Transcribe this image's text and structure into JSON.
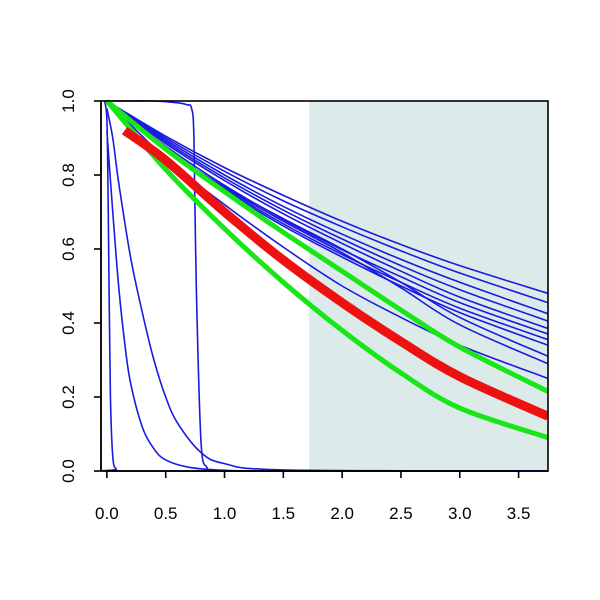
{
  "chart_data": {
    "type": "line",
    "title": "",
    "xlabel": "",
    "ylabel": "",
    "xlim": [
      -0.05,
      3.75
    ],
    "ylim": [
      0,
      1
    ],
    "x_ticks": [
      0.0,
      0.5,
      1.0,
      1.5,
      2.0,
      2.5,
      3.0,
      3.5
    ],
    "x_tick_labels": [
      "0.0",
      "0.5",
      "1.0",
      "1.5",
      "2.0",
      "2.5",
      "3.0",
      "3.5"
    ],
    "y_ticks": [
      0.0,
      0.2,
      0.4,
      0.6,
      0.8,
      1.0
    ],
    "y_tick_labels": [
      "0.0",
      "0.2",
      "0.4",
      "0.6",
      "0.8",
      "1.0"
    ],
    "grid": false,
    "legend": "none",
    "shaded_region": {
      "x_range": [
        1.72,
        3.75
      ],
      "color": "#dcebea"
    },
    "colors": {
      "blue": "#1a1ae0",
      "green": "#19e619",
      "red": "#ee1111",
      "frame": "#000000"
    },
    "series": [
      {
        "color": "blue",
        "width": 1.6,
        "x": [
          0,
          0.5,
          1,
          1.5,
          2,
          2.5,
          3,
          3.75
        ],
        "y": [
          1,
          0.905,
          0.82,
          0.745,
          0.675,
          0.612,
          0.555,
          0.48
        ]
      },
      {
        "color": "blue",
        "width": 1.6,
        "x": [
          0,
          0.5,
          1,
          1.5,
          2,
          2.5,
          3,
          3.75
        ],
        "y": [
          1,
          0.9,
          0.81,
          0.73,
          0.66,
          0.595,
          0.535,
          0.455
        ]
      },
      {
        "color": "blue",
        "width": 1.6,
        "x": [
          0,
          0.5,
          1,
          1.5,
          2,
          2.5,
          3,
          3.75
        ],
        "y": [
          1,
          0.895,
          0.8,
          0.715,
          0.64,
          0.572,
          0.51,
          0.425
        ]
      },
      {
        "color": "blue",
        "width": 1.6,
        "x": [
          0,
          0.5,
          1,
          1.5,
          2,
          2.5,
          3,
          3.75
        ],
        "y": [
          1,
          0.89,
          0.792,
          0.705,
          0.627,
          0.555,
          0.49,
          0.405
        ]
      },
      {
        "color": "blue",
        "width": 1.6,
        "x": [
          0,
          0.5,
          1,
          1.5,
          2,
          2.5,
          3,
          3.75
        ],
        "y": [
          1,
          0.885,
          0.785,
          0.695,
          0.615,
          0.54,
          0.47,
          0.385
        ]
      },
      {
        "color": "blue",
        "width": 1.6,
        "x": [
          0,
          0.5,
          1,
          1.5,
          2,
          2.5,
          3,
          3.75
        ],
        "y": [
          1,
          0.878,
          0.772,
          0.68,
          0.598,
          0.525,
          0.455,
          0.37
        ]
      },
      {
        "color": "blue",
        "width": 1.6,
        "x": [
          0,
          0.5,
          1,
          1.5,
          2,
          2.5,
          3,
          3.75
        ],
        "y": [
          1,
          0.872,
          0.762,
          0.668,
          0.585,
          0.51,
          0.44,
          0.355
        ]
      },
      {
        "color": "blue",
        "width": 1.6,
        "x": [
          0,
          0.5,
          1,
          1.5,
          2,
          2.5,
          3,
          3.75
        ],
        "y": [
          1,
          0.868,
          0.758,
          0.662,
          0.578,
          0.5,
          0.428,
          0.34
        ]
      },
      {
        "color": "blue",
        "width": 1.6,
        "x": [
          0,
          0.5,
          1,
          1.5,
          2,
          2.5,
          3,
          3.75
        ],
        "y": [
          1,
          0.87,
          0.768,
          0.682,
          0.6,
          0.51,
          0.415,
          0.31
        ]
      },
      {
        "color": "blue",
        "width": 1.6,
        "x": [
          0,
          0.5,
          1,
          1.5,
          2,
          2.5,
          3,
          3.75
        ],
        "y": [
          1,
          0.868,
          0.765,
          0.675,
          0.59,
          0.495,
          0.395,
          0.29
        ]
      },
      {
        "color": "blue",
        "width": 1.6,
        "x": [
          0,
          0.5,
          1,
          1.5,
          2,
          2.5,
          3,
          3.75
        ],
        "y": [
          1,
          0.845,
          0.72,
          0.605,
          0.5,
          0.415,
          0.34,
          0.25
        ]
      },
      {
        "color": "blue",
        "width": 1.6,
        "x": [
          -0.02,
          0.05,
          0.2,
          0.4,
          0.6,
          0.68,
          0.72,
          0.74,
          0.76,
          0.8,
          0.85,
          0.9,
          1.0,
          3.75
        ],
        "y": [
          1,
          1,
          1,
          1,
          0.995,
          0.99,
          0.98,
          0.9,
          0.5,
          0.08,
          0.01,
          0.002,
          0,
          0
        ]
      },
      {
        "color": "blue",
        "width": 1.6,
        "x": [
          0,
          0.05,
          0.1,
          0.2,
          0.3,
          0.4,
          0.5,
          0.6,
          0.8,
          1.0,
          1.5,
          3.75
        ],
        "y": [
          0.98,
          0.9,
          0.78,
          0.58,
          0.43,
          0.3,
          0.2,
          0.13,
          0.05,
          0.02,
          0.003,
          0
        ]
      },
      {
        "color": "blue",
        "width": 1.6,
        "x": [
          0,
          0.05,
          0.1,
          0.15,
          0.2,
          0.3,
          0.4,
          0.5,
          0.7,
          1.0,
          1.5,
          3.75
        ],
        "y": [
          0.92,
          0.7,
          0.5,
          0.35,
          0.24,
          0.12,
          0.06,
          0.03,
          0.01,
          0.002,
          0,
          0
        ]
      },
      {
        "color": "blue",
        "width": 1.6,
        "x": [
          -0.02,
          0,
          0.01,
          0.02,
          0.03,
          0.05,
          0.08,
          0.15,
          3.75
        ],
        "y": [
          1,
          0.95,
          0.75,
          0.45,
          0.2,
          0.04,
          0.005,
          0,
          0
        ]
      },
      {
        "color": "green",
        "width": 5,
        "x": [
          0,
          0.5,
          1,
          1.5,
          2,
          2.5,
          3,
          3.75
        ],
        "y": [
          1,
          0.87,
          0.755,
          0.645,
          0.54,
          0.435,
          0.335,
          0.215
        ]
      },
      {
        "color": "green",
        "width": 5,
        "x": [
          0,
          0.5,
          1,
          1.5,
          2,
          2.5,
          3,
          3.75
        ],
        "y": [
          1,
          0.815,
          0.655,
          0.51,
          0.38,
          0.265,
          0.17,
          0.09
        ]
      },
      {
        "color": "red",
        "width": 9,
        "x": [
          0.15,
          0.5,
          1,
          1.5,
          2,
          2.5,
          3,
          3.75
        ],
        "y": [
          0.92,
          0.84,
          0.7,
          0.57,
          0.455,
          0.35,
          0.255,
          0.148
        ]
      }
    ]
  }
}
